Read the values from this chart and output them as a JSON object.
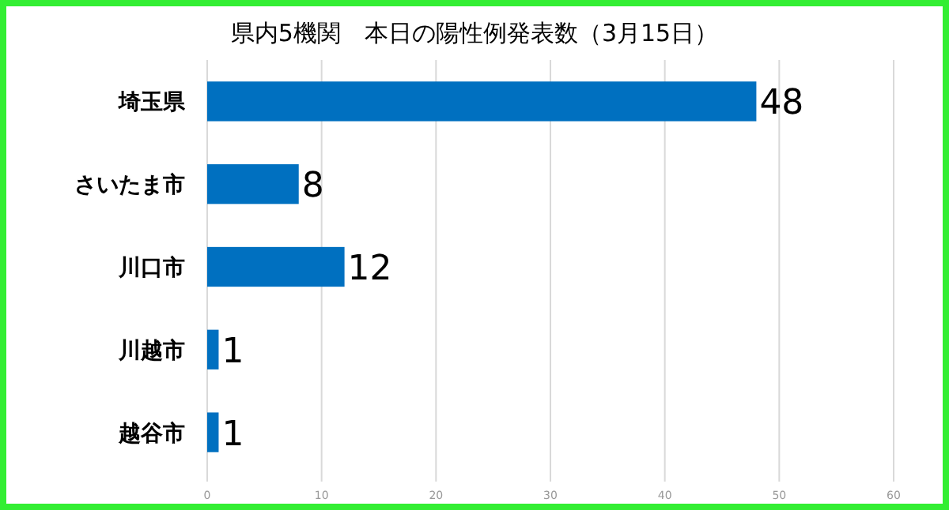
{
  "chart_data": {
    "type": "bar",
    "orientation": "horizontal",
    "title": "県内5機関　本日の陽性例発表数（3月15日）",
    "categories": [
      "埼玉県",
      "さいたま市",
      "川口市",
      "川越市",
      "越谷市"
    ],
    "values": [
      48,
      8,
      12,
      1,
      1
    ],
    "color": "#0070c0",
    "data_labels": true,
    "xlim": [
      0,
      60
    ],
    "xticks": [
      0,
      10,
      20,
      30,
      40,
      50,
      60
    ],
    "grid": "x"
  }
}
